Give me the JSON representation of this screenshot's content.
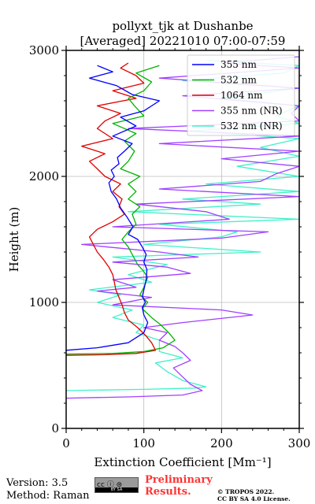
{
  "chart_data": {
    "type": "line",
    "title": [
      "pollyxt_tjk at Dushanbe",
      "[Averaged] 20221010 07:00-07:59"
    ],
    "xlabel": "Extinction Coefficient [Mm⁻¹]",
    "ylabel": "Height (m)",
    "xlim": [
      0,
      300
    ],
    "ylim": [
      0,
      3000
    ],
    "xticks": [
      0,
      100,
      200,
      300
    ],
    "yticks": [
      0,
      1000,
      2000,
      3000
    ],
    "grid": true,
    "legend_position": "top-right",
    "series": [
      {
        "name": "355 nm",
        "color": "#0000ff",
        "points": [
          [
            0,
            620
          ],
          [
            40,
            640
          ],
          [
            80,
            680
          ],
          [
            100,
            760
          ],
          [
            105,
            840
          ],
          [
            100,
            900
          ],
          [
            98,
            960
          ],
          [
            102,
            1000
          ],
          [
            98,
            1050
          ],
          [
            100,
            1100
          ],
          [
            103,
            1180
          ],
          [
            104,
            1260
          ],
          [
            100,
            1320
          ],
          [
            103,
            1380
          ],
          [
            98,
            1440
          ],
          [
            92,
            1500
          ],
          [
            80,
            1540
          ],
          [
            86,
            1600
          ],
          [
            78,
            1680
          ],
          [
            70,
            1750
          ],
          [
            65,
            1820
          ],
          [
            58,
            1880
          ],
          [
            55,
            1950
          ],
          [
            62,
            2000
          ],
          [
            58,
            2050
          ],
          [
            68,
            2100
          ],
          [
            66,
            2150
          ],
          [
            75,
            2200
          ],
          [
            85,
            2260
          ],
          [
            60,
            2320
          ],
          [
            90,
            2400
          ],
          [
            70,
            2470
          ],
          [
            100,
            2520
          ],
          [
            120,
            2600
          ],
          [
            85,
            2650
          ],
          [
            65,
            2720
          ],
          [
            30,
            2780
          ],
          [
            60,
            2830
          ],
          [
            40,
            2880
          ]
        ]
      },
      {
        "name": "532 nm",
        "color": "#00b300",
        "points": [
          [
            0,
            590
          ],
          [
            60,
            595
          ],
          [
            100,
            610
          ],
          [
            125,
            640
          ],
          [
            140,
            700
          ],
          [
            132,
            760
          ],
          [
            122,
            820
          ],
          [
            110,
            880
          ],
          [
            98,
            950
          ],
          [
            105,
            1000
          ],
          [
            95,
            1060
          ],
          [
            100,
            1120
          ],
          [
            105,
            1200
          ],
          [
            98,
            1260
          ],
          [
            92,
            1300
          ],
          [
            85,
            1380
          ],
          [
            80,
            1440
          ],
          [
            72,
            1500
          ],
          [
            80,
            1560
          ],
          [
            90,
            1620
          ],
          [
            85,
            1700
          ],
          [
            95,
            1760
          ],
          [
            80,
            1820
          ],
          [
            90,
            1880
          ],
          [
            80,
            1940
          ],
          [
            95,
            2000
          ],
          [
            70,
            2060
          ],
          [
            80,
            2120
          ],
          [
            88,
            2200
          ],
          [
            75,
            2280
          ],
          [
            90,
            2340
          ],
          [
            60,
            2420
          ],
          [
            100,
            2480
          ],
          [
            88,
            2560
          ],
          [
            80,
            2620
          ],
          [
            100,
            2680
          ],
          [
            110,
            2750
          ],
          [
            90,
            2820
          ],
          [
            120,
            2880
          ]
        ]
      },
      {
        "name": "1064 nm",
        "color": "#e00000",
        "points": [
          [
            0,
            580
          ],
          [
            50,
            585
          ],
          [
            90,
            595
          ],
          [
            115,
            620
          ],
          [
            110,
            680
          ],
          [
            102,
            740
          ],
          [
            92,
            800
          ],
          [
            80,
            860
          ],
          [
            75,
            920
          ],
          [
            72,
            980
          ],
          [
            68,
            1040
          ],
          [
            64,
            1100
          ],
          [
            62,
            1160
          ],
          [
            60,
            1220
          ],
          [
            55,
            1280
          ],
          [
            48,
            1340
          ],
          [
            40,
            1400
          ],
          [
            35,
            1460
          ],
          [
            30,
            1520
          ],
          [
            40,
            1580
          ],
          [
            60,
            1640
          ],
          [
            75,
            1700
          ],
          [
            68,
            1760
          ],
          [
            72,
            1820
          ],
          [
            60,
            1880
          ],
          [
            70,
            1940
          ],
          [
            50,
            2000
          ],
          [
            40,
            2060
          ],
          [
            30,
            2120
          ],
          [
            50,
            2180
          ],
          [
            20,
            2240
          ],
          [
            60,
            2300
          ],
          [
            40,
            2380
          ],
          [
            50,
            2440
          ],
          [
            70,
            2500
          ],
          [
            40,
            2560
          ],
          [
            90,
            2620
          ],
          [
            60,
            2680
          ],
          [
            100,
            2740
          ],
          [
            90,
            2800
          ],
          [
            70,
            2860
          ],
          [
            80,
            2900
          ]
        ]
      },
      {
        "name": "355 nm (NR)",
        "color": "#a040ff",
        "points": [
          [
            0,
            240
          ],
          [
            80,
            250
          ],
          [
            150,
            265
          ],
          [
            175,
            300
          ],
          [
            160,
            350
          ],
          [
            148,
            420
          ],
          [
            138,
            480
          ],
          [
            160,
            540
          ],
          [
            150,
            600
          ],
          [
            140,
            650
          ],
          [
            120,
            700
          ],
          [
            130,
            760
          ],
          [
            100,
            800
          ],
          [
            150,
            840
          ],
          [
            240,
            900
          ],
          [
            200,
            940
          ],
          [
            60,
            980
          ],
          [
            110,
            1040
          ],
          [
            40,
            1090
          ],
          [
            90,
            1120
          ],
          [
            60,
            1180
          ],
          [
            160,
            1230
          ],
          [
            130,
            1280
          ],
          [
            60,
            1320
          ],
          [
            170,
            1360
          ],
          [
            120,
            1400
          ],
          [
            20,
            1460
          ],
          [
            200,
            1510
          ],
          [
            260,
            1560
          ],
          [
            60,
            1600
          ],
          [
            210,
            1660
          ],
          [
            180,
            1720
          ],
          [
            90,
            1780
          ],
          [
            300,
            1840
          ],
          [
            120,
            1900
          ],
          [
            250,
            1960
          ],
          [
            270,
            2020
          ],
          [
            300,
            2080
          ],
          [
            200,
            2140
          ],
          [
            300,
            2200
          ],
          [
            120,
            2260
          ],
          [
            300,
            2320
          ],
          [
            80,
            2380
          ],
          [
            300,
            2440
          ],
          [
            290,
            2500
          ],
          [
            300,
            2560
          ],
          [
            150,
            2640
          ],
          [
            300,
            2700
          ],
          [
            120,
            2780
          ],
          [
            300,
            2860
          ],
          [
            200,
            2900
          ],
          [
            300,
            2950
          ]
        ]
      },
      {
        "name": "532 nm (NR)",
        "color": "#40f0c8",
        "points": [
          [
            0,
            300
          ],
          [
            100,
            310
          ],
          [
            165,
            320
          ],
          [
            180,
            330
          ],
          [
            150,
            380
          ],
          [
            130,
            450
          ],
          [
            115,
            520
          ],
          [
            150,
            560
          ],
          [
            120,
            610
          ],
          [
            120,
            700
          ],
          [
            90,
            760
          ],
          [
            100,
            820
          ],
          [
            60,
            880
          ],
          [
            85,
            940
          ],
          [
            40,
            1000
          ],
          [
            70,
            1060
          ],
          [
            30,
            1100
          ],
          [
            110,
            1160
          ],
          [
            80,
            1220
          ],
          [
            130,
            1300
          ],
          [
            60,
            1360
          ],
          [
            250,
            1400
          ],
          [
            100,
            1460
          ],
          [
            200,
            1520
          ],
          [
            220,
            1560
          ],
          [
            120,
            1620
          ],
          [
            300,
            1660
          ],
          [
            80,
            1720
          ],
          [
            250,
            1780
          ],
          [
            150,
            1820
          ],
          [
            300,
            1880
          ],
          [
            180,
            1940
          ],
          [
            300,
            2000
          ],
          [
            220,
            2080
          ],
          [
            300,
            2160
          ],
          [
            250,
            2230
          ],
          [
            300,
            2300
          ],
          [
            160,
            2360
          ],
          [
            300,
            2420
          ],
          [
            270,
            2480
          ],
          [
            300,
            2560
          ],
          [
            200,
            2620
          ],
          [
            300,
            2700
          ],
          [
            150,
            2760
          ],
          [
            280,
            2820
          ],
          [
            300,
            2880
          ],
          [
            180,
            2920
          ]
        ]
      }
    ]
  },
  "footer": {
    "version": "Version: 3.5",
    "method": "Method: Raman",
    "cc_top": "cc ⓘ ⊜",
    "cc_bottom": "BY   SA",
    "preliminary_line1": "Preliminary",
    "preliminary_line2": "Results.",
    "copyright_line1": "© TROPOS 2022.",
    "copyright_line2": "CC BY SA 4.0 License."
  }
}
